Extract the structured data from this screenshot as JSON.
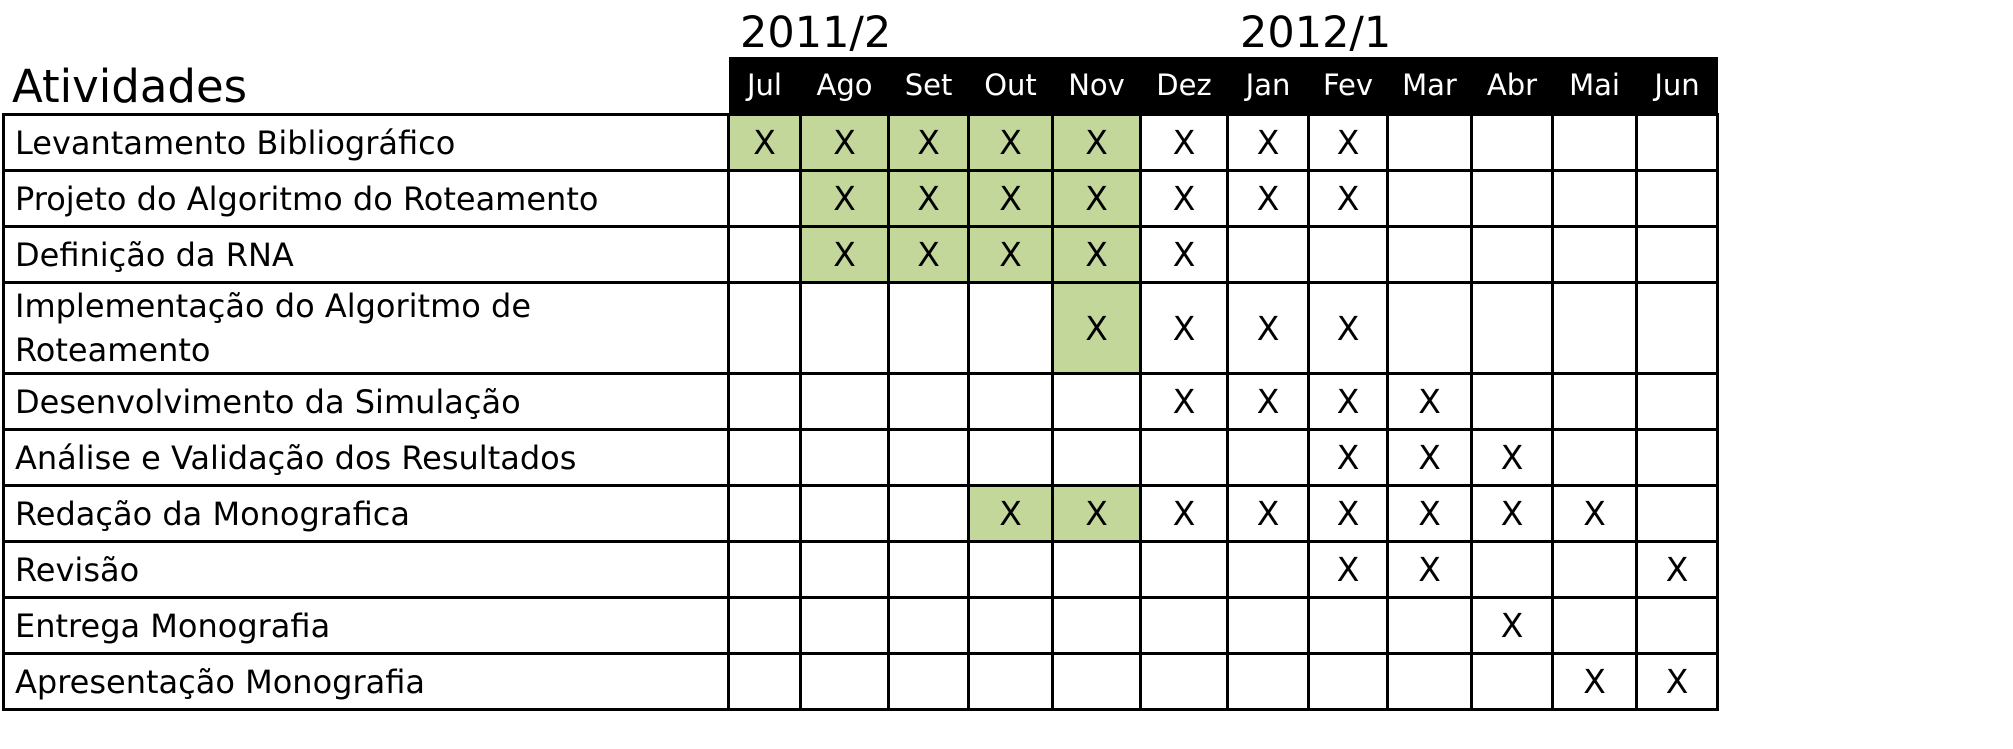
{
  "periods": [
    "2011/2",
    "2012/1"
  ],
  "table": {
    "header_label": "Atividades",
    "months": [
      "Jul",
      "Ago",
      "Set",
      "Out",
      "Nov",
      "Dez",
      "Jan",
      "Fev",
      "Mar",
      "Abr",
      "Mai",
      "Jun"
    ],
    "highlight_color": "#c4d79b",
    "mark": "X",
    "rows": [
      {
        "activity": "Levantamento Bibliográfico",
        "cells": [
          "X",
          "X",
          "X",
          "X",
          "X",
          "X",
          "X",
          "X",
          "",
          "",
          "",
          ""
        ],
        "highlighted": [
          true,
          true,
          true,
          true,
          true,
          false,
          false,
          false,
          false,
          false,
          false,
          false
        ]
      },
      {
        "activity": "Projeto do Algoritmo do Roteamento",
        "cells": [
          "",
          "X",
          "X",
          "X",
          "X",
          "X",
          "X",
          "X",
          "",
          "",
          "",
          ""
        ],
        "highlighted": [
          false,
          true,
          true,
          true,
          true,
          false,
          false,
          false,
          false,
          false,
          false,
          false
        ]
      },
      {
        "activity": "Definição da RNA",
        "cells": [
          "",
          "X",
          "X",
          "X",
          "X",
          "X",
          "",
          "",
          "",
          "",
          "",
          ""
        ],
        "highlighted": [
          false,
          true,
          true,
          true,
          true,
          false,
          false,
          false,
          false,
          false,
          false,
          false
        ]
      },
      {
        "activity": "Implementação do Algoritmo de Roteamento",
        "cells": [
          "",
          "",
          "",
          "",
          "X",
          "X",
          "X",
          "X",
          "",
          "",
          "",
          ""
        ],
        "highlighted": [
          false,
          false,
          false,
          false,
          true,
          false,
          false,
          false,
          false,
          false,
          false,
          false
        ]
      },
      {
        "activity": "Desenvolvimento da Simulação",
        "cells": [
          "",
          "",
          "",
          "",
          "",
          "X",
          "X",
          "X",
          "X",
          "",
          "",
          ""
        ],
        "highlighted": [
          false,
          false,
          false,
          false,
          false,
          false,
          false,
          false,
          false,
          false,
          false,
          false
        ]
      },
      {
        "activity": "Análise e Validação dos Resultados",
        "cells": [
          "",
          "",
          "",
          "",
          "",
          "",
          "",
          "X",
          "X",
          "X",
          "",
          ""
        ],
        "highlighted": [
          false,
          false,
          false,
          false,
          false,
          false,
          false,
          false,
          false,
          false,
          false,
          false
        ]
      },
      {
        "activity": "Redação da Monografica",
        "cells": [
          "",
          "",
          "",
          "X",
          "X",
          "X",
          "X",
          "X",
          "X",
          "X",
          "X",
          ""
        ],
        "highlighted": [
          false,
          false,
          false,
          true,
          true,
          false,
          false,
          false,
          false,
          false,
          false,
          false
        ]
      },
      {
        "activity": "Revisão",
        "cells": [
          "",
          "",
          "",
          "",
          "",
          "",
          "",
          "X",
          "X",
          "",
          "",
          "X"
        ],
        "highlighted": [
          false,
          false,
          false,
          false,
          false,
          false,
          false,
          false,
          false,
          false,
          false,
          false
        ]
      },
      {
        "activity": "Entrega Monografia",
        "cells": [
          "",
          "",
          "",
          "",
          "",
          "",
          "",
          "",
          "",
          "X",
          "",
          ""
        ],
        "highlighted": [
          false,
          false,
          false,
          false,
          false,
          false,
          false,
          false,
          false,
          false,
          false,
          false
        ]
      },
      {
        "activity": "Apresentação Monografia",
        "cells": [
          "",
          "",
          "",
          "",
          "",
          "",
          "",
          "",
          "",
          "",
          "X",
          "X"
        ],
        "highlighted": [
          false,
          false,
          false,
          false,
          false,
          false,
          false,
          false,
          false,
          false,
          false,
          false
        ]
      }
    ]
  }
}
